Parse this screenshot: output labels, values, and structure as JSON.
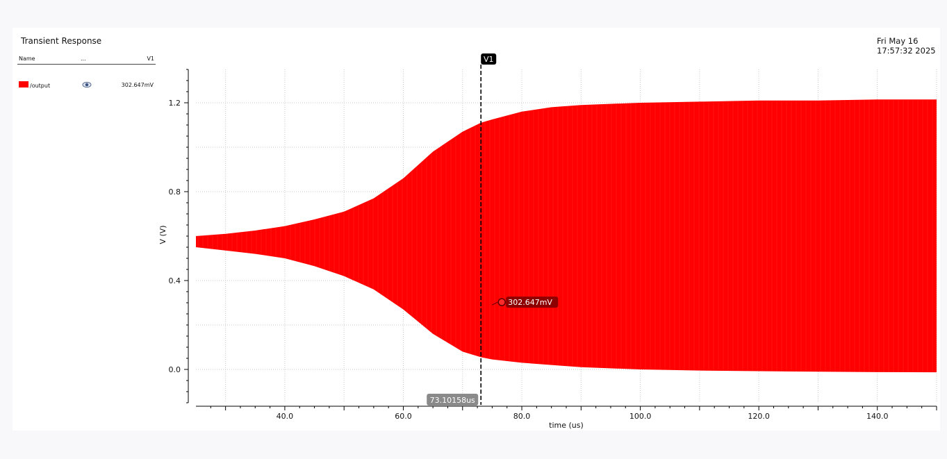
{
  "header": {
    "title": "Transient Response",
    "date": "Fri May 16",
    "time": "17:57:32 2025"
  },
  "legend": {
    "col_name": "Name",
    "col_dots": "...",
    "col_v1": "V1",
    "signal": {
      "name": "/output",
      "value": "302.647mV",
      "color": "#ff0000",
      "visible_icon": "eye-icon"
    }
  },
  "cursor": {
    "label": "V1",
    "x_readout": "73.10158us",
    "y_readout": "302.647mV",
    "x": 73.10158,
    "y": 0.302647
  },
  "chart_data": {
    "type": "area",
    "xlabel": "time (us)",
    "ylabel": "V (V)",
    "xlim": [
      25,
      150
    ],
    "ylim": [
      -0.15,
      1.35
    ],
    "xticks": [
      40.0,
      60.0,
      80.0,
      100.0,
      120.0,
      140.0
    ],
    "xtick_labels": [
      "40.0",
      "60.0",
      "80.0",
      "100.0",
      "120.0",
      "140.0"
    ],
    "yticks": [
      0.0,
      0.4,
      0.8,
      1.2
    ],
    "ytick_labels": [
      "0.0",
      "0.4",
      "0.8",
      "1.2"
    ],
    "grid": true,
    "series": [
      {
        "name": "/output",
        "color": "#ff0000",
        "x": [
          25,
          30,
          35,
          40,
          45,
          50,
          55,
          60,
          65,
          70,
          73.1,
          75,
          80,
          85,
          90,
          100,
          110,
          120,
          130,
          140,
          150
        ],
        "upper": [
          0.6,
          0.61,
          0.625,
          0.645,
          0.675,
          0.71,
          0.77,
          0.86,
          0.98,
          1.07,
          1.11,
          1.125,
          1.16,
          1.18,
          1.19,
          1.2,
          1.205,
          1.21,
          1.21,
          1.215,
          1.215
        ],
        "lower": [
          0.55,
          0.535,
          0.52,
          0.5,
          0.465,
          0.42,
          0.36,
          0.27,
          0.16,
          0.08,
          0.055,
          0.045,
          0.03,
          0.02,
          0.01,
          0.0,
          -0.005,
          -0.008,
          -0.01,
          -0.012,
          -0.013
        ]
      }
    ]
  }
}
